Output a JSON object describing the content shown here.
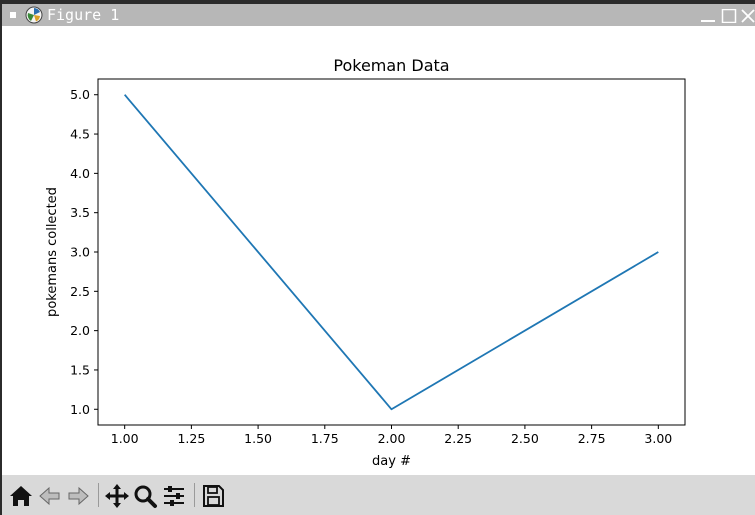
{
  "window": {
    "title": "Figure 1"
  },
  "toolbar": {
    "items": [
      {
        "icon": "home-icon"
      },
      {
        "icon": "back-arrow-icon"
      },
      {
        "icon": "forward-arrow-icon"
      },
      {
        "icon": "pan-icon"
      },
      {
        "icon": "zoom-icon"
      },
      {
        "icon": "subplots-config-icon"
      },
      {
        "icon": "save-icon"
      }
    ]
  },
  "colors": {
    "line": "#1f77b4",
    "titlebar": "#b7b7b7",
    "toolbar": "#d9d9d9"
  },
  "chart_data": {
    "type": "line",
    "title": "Pokeman Data",
    "xlabel": "day #",
    "ylabel": "pokemans collected",
    "x": [
      1,
      2,
      3
    ],
    "series": [
      {
        "values": [
          5,
          1,
          3
        ]
      }
    ],
    "xlim": [
      0.9,
      3.1
    ],
    "ylim": [
      0.8,
      5.2
    ],
    "xticks": [
      "1.00",
      "1.25",
      "1.50",
      "1.75",
      "2.00",
      "2.25",
      "2.50",
      "2.75",
      "3.00"
    ],
    "yticks": [
      "1.0",
      "1.5",
      "2.0",
      "2.5",
      "3.0",
      "3.5",
      "4.0",
      "4.5",
      "5.0"
    ],
    "grid": false,
    "legend": "none"
  }
}
